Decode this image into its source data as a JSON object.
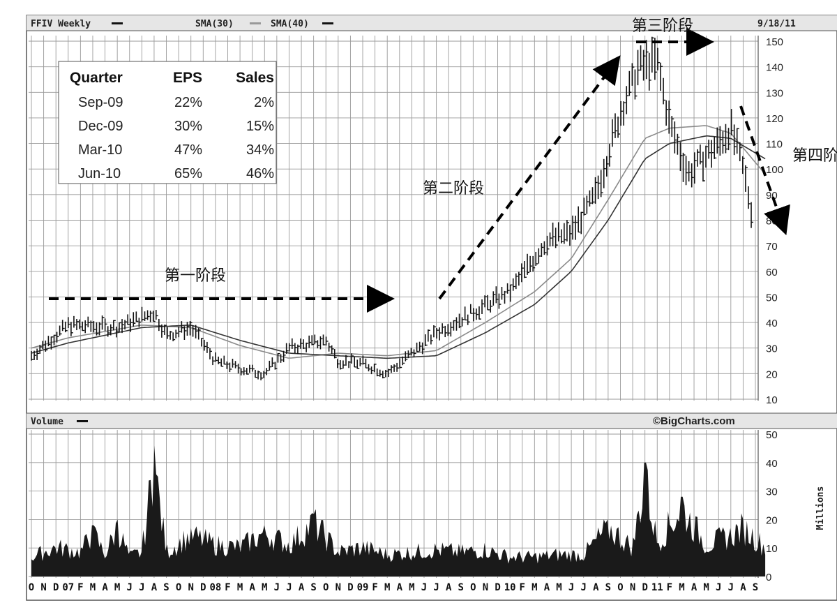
{
  "chart_data": [
    {
      "type": "ohlc",
      "symbol_label": "FFIV Weekly",
      "indicators": [
        "SMA(30)",
        "SMA(40)"
      ],
      "date_label": "9/18/11",
      "ylim": [
        10,
        150
      ],
      "y_ticks": [
        "150",
        "140",
        "130",
        "120",
        "110",
        "100",
        "90",
        "80",
        "70",
        "60",
        "50",
        "40",
        "30",
        "20",
        "10"
      ],
      "x_ticks": [
        "O",
        "N",
        "D",
        "07",
        "F",
        "M",
        "A",
        "M",
        "J",
        "J",
        "A",
        "S",
        "O",
        "N",
        "D",
        "08",
        "F",
        "M",
        "A",
        "M",
        "J",
        "J",
        "A",
        "S",
        "O",
        "N",
        "D",
        "09",
        "F",
        "M",
        "A",
        "M",
        "J",
        "J",
        "A",
        "S",
        "O",
        "N",
        "D",
        "10",
        "F",
        "M",
        "A",
        "M",
        "J",
        "J",
        "A",
        "S",
        "O",
        "N",
        "D",
        "11",
        "F",
        "M",
        "A",
        "M",
        "J",
        "J",
        "A",
        "S"
      ],
      "price_keypoints": [
        {
          "x": 0,
          "y": 27
        },
        {
          "x": 3,
          "y": 39
        },
        {
          "x": 7,
          "y": 38
        },
        {
          "x": 10,
          "y": 44
        },
        {
          "x": 11,
          "y": 35
        },
        {
          "x": 13,
          "y": 38
        },
        {
          "x": 15,
          "y": 25
        },
        {
          "x": 17,
          "y": 22
        },
        {
          "x": 19,
          "y": 20
        },
        {
          "x": 21,
          "y": 30
        },
        {
          "x": 24,
          "y": 33
        },
        {
          "x": 25,
          "y": 25
        },
        {
          "x": 27,
          "y": 24
        },
        {
          "x": 29,
          "y": 20
        },
        {
          "x": 31,
          "y": 28
        },
        {
          "x": 33,
          "y": 36
        },
        {
          "x": 36,
          "y": 44
        },
        {
          "x": 39,
          "y": 52
        },
        {
          "x": 42,
          "y": 72
        },
        {
          "x": 44,
          "y": 75
        },
        {
          "x": 46,
          "y": 90
        },
        {
          "x": 48,
          "y": 122
        },
        {
          "x": 49.5,
          "y": 140
        },
        {
          "x": 51,
          "y": 142
        },
        {
          "x": 52,
          "y": 118
        },
        {
          "x": 53.5,
          "y": 98
        },
        {
          "x": 56,
          "y": 110
        },
        {
          "x": 57,
          "y": 116
        },
        {
          "x": 58,
          "y": 100
        },
        {
          "x": 59,
          "y": 76
        },
        {
          "x": 59.8,
          "y": 75
        }
      ],
      "sma30_keypoints": [
        {
          "x": 0,
          "y": 30
        },
        {
          "x": 3,
          "y": 34
        },
        {
          "x": 9,
          "y": 39
        },
        {
          "x": 13,
          "y": 38
        },
        {
          "x": 17,
          "y": 31
        },
        {
          "x": 21,
          "y": 26
        },
        {
          "x": 25,
          "y": 28
        },
        {
          "x": 29,
          "y": 27
        },
        {
          "x": 33,
          "y": 29
        },
        {
          "x": 37,
          "y": 40
        },
        {
          "x": 41,
          "y": 52
        },
        {
          "x": 44,
          "y": 65
        },
        {
          "x": 47,
          "y": 88
        },
        {
          "x": 50,
          "y": 112
        },
        {
          "x": 52,
          "y": 116
        },
        {
          "x": 55,
          "y": 117
        },
        {
          "x": 57,
          "y": 114
        },
        {
          "x": 59.8,
          "y": 98
        }
      ],
      "sma40_keypoints": [
        {
          "x": 0,
          "y": 28
        },
        {
          "x": 3,
          "y": 32
        },
        {
          "x": 9,
          "y": 38
        },
        {
          "x": 13,
          "y": 39
        },
        {
          "x": 17,
          "y": 33
        },
        {
          "x": 21,
          "y": 28
        },
        {
          "x": 25,
          "y": 27
        },
        {
          "x": 29,
          "y": 26
        },
        {
          "x": 33,
          "y": 27
        },
        {
          "x": 37,
          "y": 36
        },
        {
          "x": 41,
          "y": 47
        },
        {
          "x": 44,
          "y": 60
        },
        {
          "x": 47,
          "y": 80
        },
        {
          "x": 50,
          "y": 104
        },
        {
          "x": 52,
          "y": 110
        },
        {
          "x": 55,
          "y": 113
        },
        {
          "x": 57,
          "y": 112
        },
        {
          "x": 59.8,
          "y": 104
        }
      ],
      "table": {
        "headers": [
          "Quarter",
          "EPS",
          "Sales"
        ],
        "rows": [
          [
            "Sep-09",
            "22%",
            "2%"
          ],
          [
            "Dec-09",
            "30%",
            "15%"
          ],
          [
            "Mar-10",
            "47%",
            "34%"
          ],
          [
            "Jun-10",
            "65%",
            "46%"
          ]
        ]
      },
      "annotations": [
        "第一阶段",
        "第二阶段",
        "第三阶段",
        "第四阶"
      ]
    },
    {
      "type": "bar",
      "title": "Volume",
      "credit": "©BigCharts.com",
      "ylabel": "Millions",
      "ylim": [
        0,
        50
      ],
      "y_ticks": [
        "50",
        "40",
        "30",
        "20",
        "10",
        "0"
      ],
      "volume_keypoints": [
        {
          "x": 0,
          "y": 8
        },
        {
          "x": 2,
          "y": 12
        },
        {
          "x": 4,
          "y": 10
        },
        {
          "x": 5,
          "y": 18
        },
        {
          "x": 6,
          "y": 9
        },
        {
          "x": 7,
          "y": 20
        },
        {
          "x": 8,
          "y": 8
        },
        {
          "x": 9,
          "y": 10
        },
        {
          "x": 10,
          "y": 46
        },
        {
          "x": 11,
          "y": 10
        },
        {
          "x": 13,
          "y": 17
        },
        {
          "x": 15,
          "y": 13
        },
        {
          "x": 17,
          "y": 12
        },
        {
          "x": 19,
          "y": 18
        },
        {
          "x": 21,
          "y": 13
        },
        {
          "x": 23,
          "y": 22
        },
        {
          "x": 25,
          "y": 10
        },
        {
          "x": 27,
          "y": 12
        },
        {
          "x": 29,
          "y": 9
        },
        {
          "x": 31,
          "y": 10
        },
        {
          "x": 33,
          "y": 11
        },
        {
          "x": 35,
          "y": 10
        },
        {
          "x": 37,
          "y": 11
        },
        {
          "x": 39,
          "y": 8
        },
        {
          "x": 41,
          "y": 8
        },
        {
          "x": 43,
          "y": 9
        },
        {
          "x": 45,
          "y": 9
        },
        {
          "x": 47,
          "y": 20
        },
        {
          "x": 49,
          "y": 12
        },
        {
          "x": 50,
          "y": 40
        },
        {
          "x": 51,
          "y": 14
        },
        {
          "x": 53,
          "y": 28
        },
        {
          "x": 55,
          "y": 13
        },
        {
          "x": 57,
          "y": 17
        },
        {
          "x": 58,
          "y": 20
        },
        {
          "x": 59.8,
          "y": 12
        }
      ]
    }
  ]
}
